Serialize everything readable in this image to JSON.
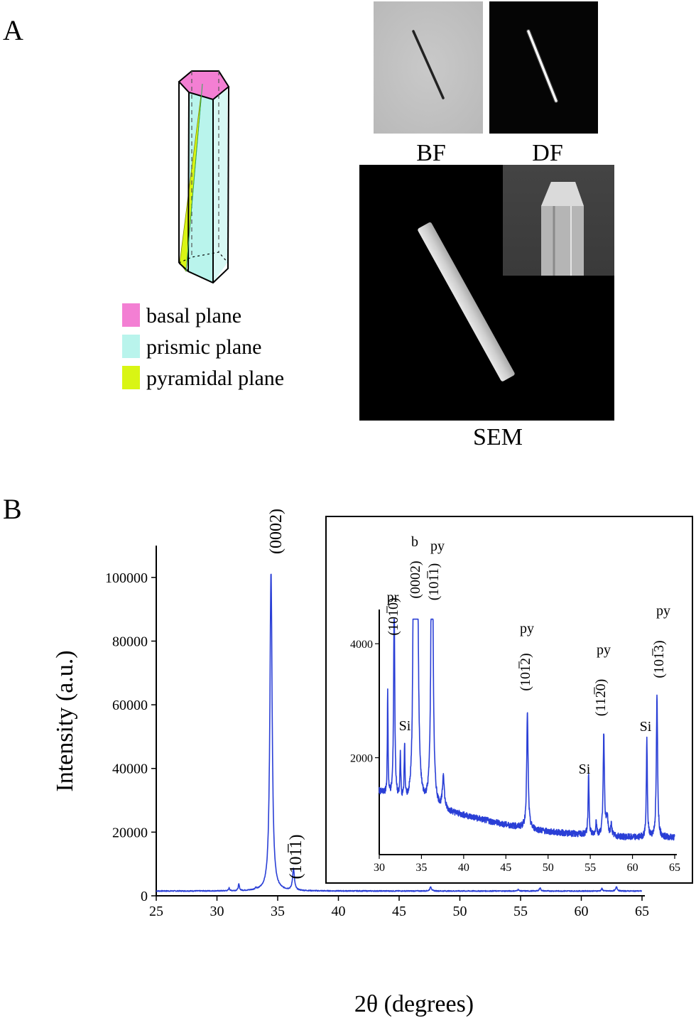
{
  "panel_a": {
    "letter": "A",
    "legend": [
      {
        "label": "basal plane",
        "color": "#f37fd3"
      },
      {
        "label": "prismic plane",
        "color": "#b9f4ec"
      },
      {
        "label": "pyramidal plane",
        "color": "#d9f514"
      }
    ],
    "images": {
      "bf_label": "BF",
      "df_label": "DF",
      "sem_label": "SEM"
    }
  },
  "panel_b": {
    "letter": "B"
  },
  "chart_data": [
    {
      "type": "line",
      "xlabel": "2θ (degrees)",
      "ylabel": "Intensity (a.u.)",
      "xlim": [
        25,
        65
      ],
      "ylim": [
        0,
        110000
      ],
      "xticks": [
        25,
        30,
        35,
        40,
        45,
        50,
        55,
        60,
        65
      ],
      "yticks": [
        0,
        20000,
        40000,
        60000,
        80000,
        100000
      ],
      "grid": false,
      "color": "#2a3fd6",
      "baseline": 1500,
      "peaks": [
        {
          "x": 31.0,
          "y": 900,
          "w": 0.05
        },
        {
          "x": 31.8,
          "y": 2000,
          "w": 0.06
        },
        {
          "x": 33.2,
          "y": 600,
          "w": 0.05
        },
        {
          "x": 34.45,
          "y": 100300,
          "w": 0.11
        },
        {
          "x": 36.3,
          "y": 6800,
          "w": 0.09
        },
        {
          "x": 47.6,
          "y": 1300,
          "w": 0.08
        },
        {
          "x": 54.8,
          "y": 500,
          "w": 0.06
        },
        {
          "x": 56.6,
          "y": 1000,
          "w": 0.07
        },
        {
          "x": 61.7,
          "y": 800,
          "w": 0.06
        },
        {
          "x": 62.9,
          "y": 1400,
          "w": 0.07
        }
      ],
      "annotations": [
        {
          "x": 34.45,
          "y": 100300,
          "text": "(0002)"
        },
        {
          "x": 36.3,
          "y": 6800,
          "text": "(10",
          "bar": "1",
          "after": "1)"
        }
      ]
    },
    {
      "type": "line",
      "role": "inset",
      "xlim": [
        30,
        65
      ],
      "ylim": [
        300,
        4600
      ],
      "xticks": [
        30,
        35,
        40,
        45,
        50,
        55,
        60,
        65
      ],
      "yticks": [
        2000,
        4000
      ],
      "grid": false,
      "color": "#2a3fd6",
      "baseline": [
        {
          "x": 30,
          "y": 1400
        },
        {
          "x": 33,
          "y": 1150
        },
        {
          "x": 38,
          "y": 1050
        },
        {
          "x": 45,
          "y": 820
        },
        {
          "x": 50,
          "y": 700
        },
        {
          "x": 55,
          "y": 640
        },
        {
          "x": 60,
          "y": 600
        },
        {
          "x": 65,
          "y": 600
        }
      ],
      "peaks": [
        {
          "x": 31.0,
          "y": 1800,
          "w": 0.05
        },
        {
          "x": 31.77,
          "y": 3500,
          "w": 0.08
        },
        {
          "x": 32.5,
          "y": 800,
          "w": 0.06
        },
        {
          "x": 33.0,
          "y": 1000,
          "w": 0.06
        },
        {
          "x": 34.1,
          "y": 6000,
          "w": 0.1
        },
        {
          "x": 34.45,
          "y": 9000,
          "w": 0.12
        },
        {
          "x": 36.25,
          "y": 7000,
          "w": 0.12
        },
        {
          "x": 37.6,
          "y": 600,
          "w": 0.12
        },
        {
          "x": 47.55,
          "y": 2000,
          "w": 0.1
        },
        {
          "x": 54.8,
          "y": 1050,
          "w": 0.07
        },
        {
          "x": 55.7,
          "y": 250,
          "w": 0.07
        },
        {
          "x": 56.6,
          "y": 1800,
          "w": 0.09
        },
        {
          "x": 57.0,
          "y": 300,
          "w": 0.12
        },
        {
          "x": 57.5,
          "y": 200,
          "w": 0.08
        },
        {
          "x": 61.7,
          "y": 1700,
          "w": 0.07
        },
        {
          "x": 62.9,
          "y": 2450,
          "w": 0.09
        }
      ],
      "annotations": [
        {
          "id": "pr",
          "text": "pr"
        },
        {
          "id": "b",
          "text": "b"
        },
        {
          "id": "py1",
          "text": "py"
        },
        {
          "id": "py2",
          "text": "py"
        },
        {
          "id": "py3",
          "text": "py"
        },
        {
          "id": "py4",
          "text": "py"
        },
        {
          "id": "si1",
          "text": "Si"
        },
        {
          "id": "si2",
          "text": "Si"
        },
        {
          "id": "si3",
          "text": "Si"
        },
        {
          "id": "m1010",
          "pre": "(10",
          "bar": "1",
          "post": "0)"
        },
        {
          "id": "m0002",
          "pre": "(0002)",
          "bar": "",
          "post": ""
        },
        {
          "id": "m1011",
          "pre": "(10",
          "bar": "1",
          "post": "1)"
        },
        {
          "id": "m1012",
          "pre": "(10",
          "bar": "1",
          "post": "2)"
        },
        {
          "id": "m1120",
          "pre": "(11",
          "bar": "2",
          "post": "0)"
        },
        {
          "id": "m1013",
          "pre": "(10",
          "bar": "1",
          "post": "3)"
        }
      ]
    }
  ]
}
